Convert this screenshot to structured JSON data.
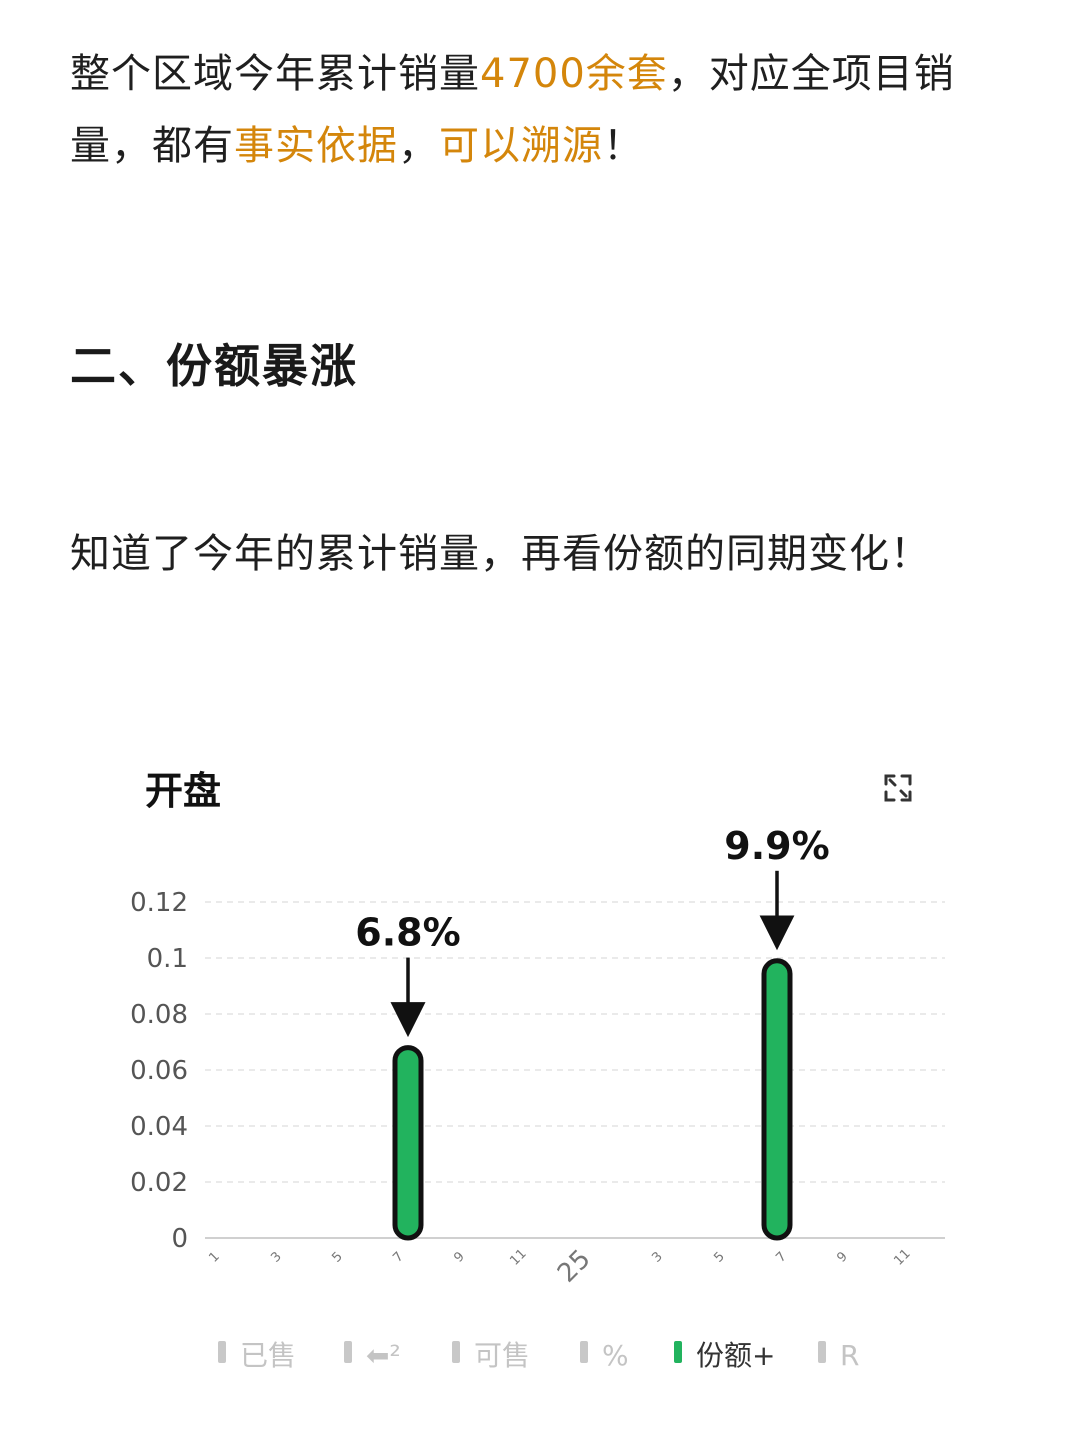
{
  "article": {
    "para1": [
      {
        "text": "整个区域今年累计销量",
        "hl": false
      },
      {
        "text": "4700余套",
        "hl": true
      },
      {
        "text": "，对应全项目销量，都有",
        "hl": false
      },
      {
        "text": "事实依据",
        "hl": true
      },
      {
        "text": "，",
        "hl": false
      },
      {
        "text": "可以溯源",
        "hl": true
      },
      {
        "text": "！",
        "hl": false
      }
    ],
    "heading": "二、份额暴涨",
    "para2": "知道了今年的累计销量，再看份额的同期变化！"
  },
  "colors": {
    "highlight": "#d4860b",
    "bar": "#22b35e",
    "bar_outline": "#111111",
    "legend_inactive": "#c8c8c8",
    "legend_active": "#22b35e"
  },
  "chart_data": {
    "type": "bar",
    "title": "开盘",
    "icon": "expand-icon",
    "ylim": [
      0,
      0.12
    ],
    "y_ticks": [
      "0",
      "0.02",
      "0.04",
      "0.06",
      "0.08",
      "0.1",
      "0.12"
    ],
    "x_ticks": [
      "1",
      "3",
      "5",
      "7",
      "9",
      "11",
      "25",
      "3",
      "5",
      "7",
      "9",
      "11"
    ],
    "bars": [
      {
        "x_label": "7",
        "x_index": 3,
        "value": 0.068,
        "annotation": "6.8%"
      },
      {
        "x_label": "7",
        "x_index": 9,
        "value": 0.099,
        "annotation": "9.9%"
      }
    ],
    "grid": true,
    "legend": {
      "placement": "bottom",
      "items": [
        {
          "label": "已售",
          "active": false
        },
        {
          "label": "⬅²",
          "active": false
        },
        {
          "label": "可售",
          "active": false
        },
        {
          "label": "%",
          "active": false
        },
        {
          "label": "份额+",
          "active": true
        },
        {
          "label": "R",
          "active": false
        }
      ]
    }
  }
}
